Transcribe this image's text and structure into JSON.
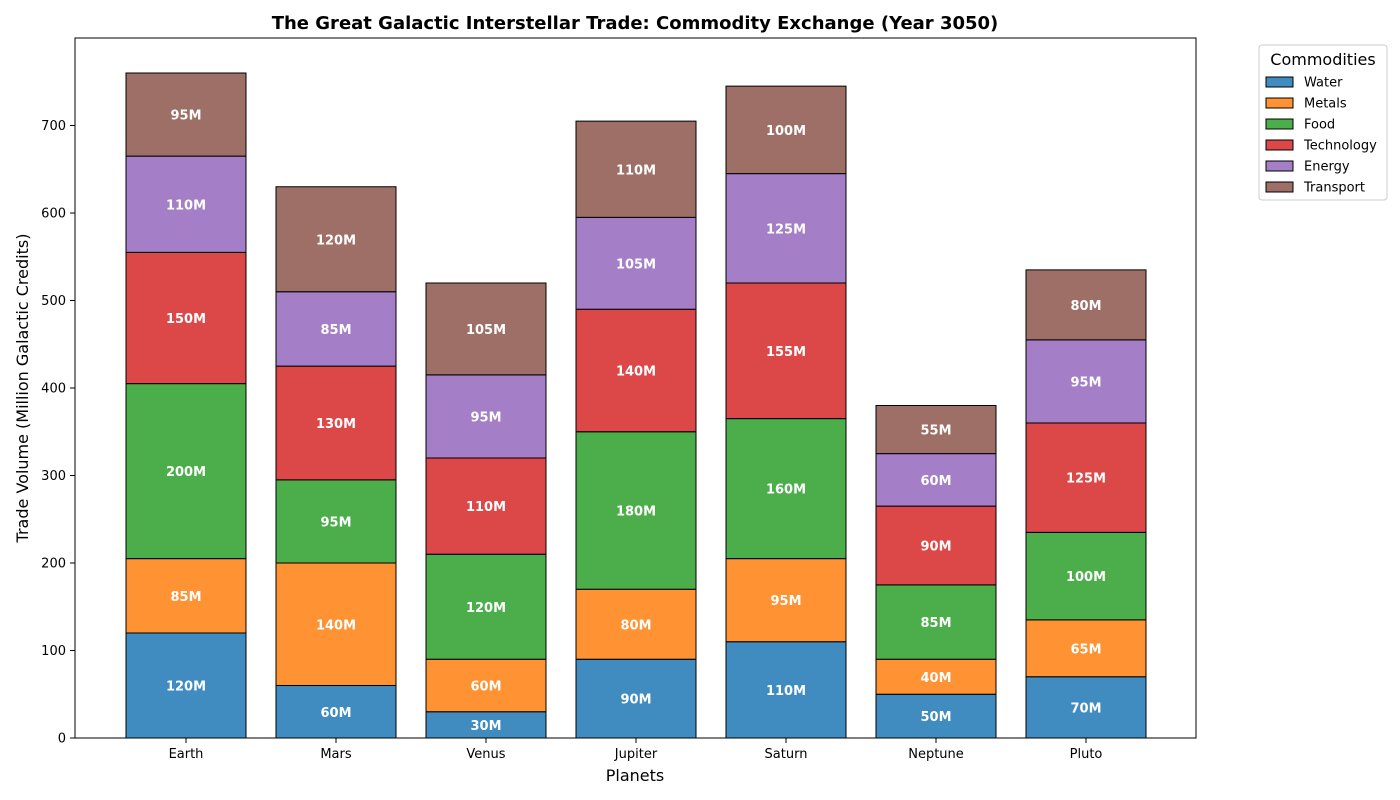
{
  "chart_data": {
    "type": "bar",
    "stacked": true,
    "title": "The Great Galactic Interstellar Trade: Commodity Exchange (Year 3050)",
    "xlabel": "Planets",
    "ylabel": "Trade Volume (Million Galactic Credits)",
    "ylim": [
      0,
      800
    ],
    "yticks": [
      0,
      100,
      200,
      300,
      400,
      500,
      600,
      700
    ],
    "grid": false,
    "legend_title": "Commodities",
    "legend_position": "outside top-right",
    "value_suffix": "M",
    "categories": [
      "Earth",
      "Mars",
      "Venus",
      "Jupiter",
      "Saturn",
      "Neptune",
      "Pluto"
    ],
    "series": [
      {
        "name": "Water",
        "color": "#1f77b4",
        "values": [
          120,
          60,
          30,
          90,
          110,
          50,
          70
        ]
      },
      {
        "name": "Metals",
        "color": "#ff7f0e",
        "values": [
          85,
          140,
          60,
          80,
          95,
          40,
          65
        ]
      },
      {
        "name": "Food",
        "color": "#2ca02c",
        "values": [
          200,
          95,
          120,
          180,
          160,
          85,
          100
        ]
      },
      {
        "name": "Technology",
        "color": "#d62728",
        "values": [
          150,
          130,
          110,
          140,
          155,
          90,
          125
        ]
      },
      {
        "name": "Energy",
        "color": "#9467bd",
        "values": [
          110,
          85,
          95,
          105,
          125,
          60,
          95
        ]
      },
      {
        "name": "Transport",
        "color": "#8c564b",
        "values": [
          95,
          120,
          105,
          110,
          100,
          55,
          80
        ]
      }
    ]
  }
}
